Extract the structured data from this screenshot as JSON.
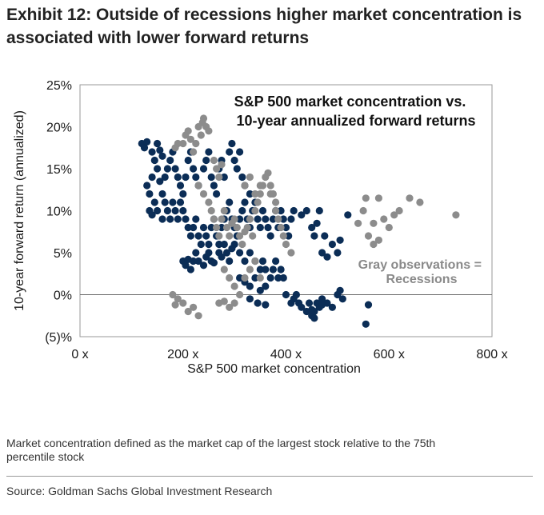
{
  "exhibit_title": "Exhibit 12: Outside of recessions higher market concentration is associated with lower forward returns",
  "footnote": "Market concentration defined as the market cap of the largest stock relative to the 75th percentile stock",
  "source": "Source: Goldman Sachs Global Investment Research",
  "colors": {
    "non_recession": "#0b2d56",
    "recession": "#8c8c8c"
  },
  "chart_data": {
    "type": "scatter",
    "title": "S&P 500 market concentration vs.\n10-year annualized forward returns",
    "title_lines": [
      "S&P 500 market concentration vs.",
      "10-year annualized forward returns"
    ],
    "xlabel": "S&P 500 market concentration",
    "ylabel": "10-year forward return (annualized)",
    "xlim": [
      0,
      800
    ],
    "ylim": [
      -5,
      25
    ],
    "x_ticks": [
      0,
      200,
      400,
      600,
      800
    ],
    "x_tick_labels": [
      "0 x",
      "200 x",
      "400 x",
      "600 x",
      "800 x"
    ],
    "y_ticks": [
      -5,
      0,
      5,
      10,
      15,
      20,
      25
    ],
    "y_tick_labels": [
      "(5)%",
      "0%",
      "5%",
      "10%",
      "15%",
      "20%",
      "25%"
    ],
    "annotation_lines": [
      "Gray observations =",
      "Recessions"
    ],
    "grid": false,
    "legend": "none",
    "series": [
      {
        "points": [
          [
            120,
            18
          ],
          [
            125,
            17.5
          ],
          [
            130,
            18.2
          ],
          [
            140,
            17
          ],
          [
            145,
            16
          ],
          [
            150,
            18
          ],
          [
            155,
            17.2
          ],
          [
            160,
            16.5
          ],
          [
            130,
            13
          ],
          [
            135,
            12
          ],
          [
            140,
            14
          ],
          [
            150,
            15
          ],
          [
            155,
            13.5
          ],
          [
            160,
            12
          ],
          [
            165,
            14
          ],
          [
            170,
            15
          ],
          [
            175,
            16
          ],
          [
            180,
            17
          ],
          [
            185,
            15
          ],
          [
            190,
            14
          ],
          [
            195,
            13
          ],
          [
            200,
            12
          ],
          [
            205,
            14
          ],
          [
            210,
            16
          ],
          [
            215,
            17
          ],
          [
            220,
            15
          ],
          [
            225,
            14
          ],
          [
            230,
            13
          ],
          [
            240,
            15
          ],
          [
            245,
            16
          ],
          [
            250,
            17
          ],
          [
            255,
            14
          ],
          [
            260,
            13
          ],
          [
            265,
            12
          ],
          [
            270,
            15
          ],
          [
            275,
            16
          ],
          [
            280,
            14
          ],
          [
            290,
            17
          ],
          [
            295,
            18
          ],
          [
            300,
            16
          ],
          [
            305,
            15
          ],
          [
            310,
            17
          ],
          [
            315,
            14
          ],
          [
            320,
            13
          ],
          [
            330,
            12
          ],
          [
            135,
            10
          ],
          [
            140,
            9.5
          ],
          [
            145,
            11
          ],
          [
            150,
            10
          ],
          [
            160,
            9
          ],
          [
            165,
            11
          ],
          [
            170,
            10
          ],
          [
            175,
            9
          ],
          [
            180,
            11
          ],
          [
            185,
            10
          ],
          [
            190,
            9
          ],
          [
            195,
            11
          ],
          [
            200,
            10
          ],
          [
            205,
            9
          ],
          [
            210,
            8
          ],
          [
            215,
            7
          ],
          [
            220,
            8
          ],
          [
            225,
            9
          ],
          [
            230,
            7
          ],
          [
            235,
            6
          ],
          [
            240,
            8
          ],
          [
            245,
            7
          ],
          [
            250,
            6
          ],
          [
            255,
            8
          ],
          [
            260,
            9
          ],
          [
            265,
            7
          ],
          [
            270,
            6
          ],
          [
            275,
            8
          ],
          [
            280,
            9
          ],
          [
            285,
            10
          ],
          [
            290,
            11
          ],
          [
            295,
            9
          ],
          [
            300,
            8
          ],
          [
            305,
            7
          ],
          [
            310,
            9
          ],
          [
            315,
            10
          ],
          [
            320,
            11
          ],
          [
            325,
            9
          ],
          [
            330,
            8
          ],
          [
            335,
            10
          ],
          [
            340,
            11
          ],
          [
            345,
            9
          ],
          [
            350,
            8
          ],
          [
            355,
            10
          ],
          [
            360,
            9
          ],
          [
            365,
            8
          ],
          [
            370,
            7
          ],
          [
            375,
            9
          ],
          [
            380,
            10
          ],
          [
            385,
            8
          ],
          [
            390,
            10
          ],
          [
            395,
            9
          ],
          [
            400,
            8
          ],
          [
            405,
            7
          ],
          [
            410,
            9
          ],
          [
            415,
            10
          ],
          [
            200,
            4
          ],
          [
            205,
            3.5
          ],
          [
            210,
            4.2
          ],
          [
            215,
            3
          ],
          [
            220,
            4
          ],
          [
            225,
            5
          ],
          [
            230,
            4
          ],
          [
            240,
            3.5
          ],
          [
            245,
            4.5
          ],
          [
            250,
            5
          ],
          [
            255,
            4
          ],
          [
            260,
            3.8
          ],
          [
            270,
            5
          ],
          [
            275,
            4.5
          ],
          [
            280,
            6
          ],
          [
            285,
            5
          ],
          [
            290,
            4
          ],
          [
            295,
            5.5
          ],
          [
            300,
            6
          ],
          [
            310,
            5
          ],
          [
            320,
            4
          ],
          [
            330,
            5
          ],
          [
            340,
            4
          ],
          [
            350,
            3
          ],
          [
            355,
            4
          ],
          [
            360,
            3
          ],
          [
            370,
            2
          ],
          [
            375,
            3
          ],
          [
            380,
            4
          ],
          [
            385,
            2
          ],
          [
            390,
            3
          ],
          [
            395,
            2
          ],
          [
            310,
            2
          ],
          [
            320,
            1.5
          ],
          [
            330,
            1
          ],
          [
            340,
            2
          ],
          [
            350,
            0.5
          ],
          [
            360,
            1
          ],
          [
            400,
            0
          ],
          [
            410,
            -1
          ],
          [
            415,
            -0.5
          ],
          [
            420,
            0
          ],
          [
            425,
            -1
          ],
          [
            430,
            -1.5
          ],
          [
            440,
            -2
          ],
          [
            445,
            -1
          ],
          [
            450,
            -2.5
          ],
          [
            455,
            -2
          ],
          [
            460,
            -1
          ],
          [
            465,
            -1.5
          ],
          [
            470,
            -0.5
          ],
          [
            480,
            -1
          ],
          [
            490,
            -1.5
          ],
          [
            500,
            0
          ],
          [
            505,
            0.5
          ],
          [
            510,
            -0.5
          ],
          [
            450,
            -1.8
          ],
          [
            455,
            -2.8
          ],
          [
            470,
            -1.2
          ],
          [
            560,
            -1.2
          ],
          [
            555,
            -3.5
          ],
          [
            470,
            5
          ],
          [
            480,
            4.5
          ],
          [
            490,
            6
          ],
          [
            500,
            5
          ],
          [
            475,
            7
          ],
          [
            505,
            6.5
          ],
          [
            430,
            9.5
          ],
          [
            440,
            10
          ],
          [
            450,
            8
          ],
          [
            455,
            7
          ],
          [
            460,
            8.5
          ],
          [
            465,
            10
          ],
          [
            520,
            9.5
          ],
          [
            330,
            -0.5
          ],
          [
            345,
            -1
          ],
          [
            360,
            -1.2
          ]
        ]
      },
      {
        "points": [
          [
            200,
            18
          ],
          [
            205,
            19
          ],
          [
            210,
            19.5
          ],
          [
            215,
            18.5
          ],
          [
            220,
            17
          ],
          [
            225,
            18
          ],
          [
            230,
            20
          ],
          [
            235,
            19
          ],
          [
            238,
            20.5
          ],
          [
            240,
            21
          ],
          [
            245,
            20
          ],
          [
            250,
            19.5
          ],
          [
            190,
            18
          ],
          [
            185,
            17.5
          ],
          [
            260,
            16
          ],
          [
            265,
            15
          ],
          [
            270,
            14
          ],
          [
            275,
            15.5
          ],
          [
            230,
            13
          ],
          [
            240,
            12
          ],
          [
            250,
            11
          ],
          [
            255,
            10
          ],
          [
            260,
            9
          ],
          [
            265,
            8
          ],
          [
            270,
            7
          ],
          [
            275,
            9
          ],
          [
            280,
            10
          ],
          [
            285,
            8
          ],
          [
            290,
            7
          ],
          [
            295,
            8.5
          ],
          [
            300,
            9
          ],
          [
            305,
            8
          ],
          [
            310,
            7
          ],
          [
            315,
            6
          ],
          [
            320,
            7.5
          ],
          [
            325,
            8
          ],
          [
            330,
            9
          ],
          [
            335,
            7
          ],
          [
            340,
            10
          ],
          [
            345,
            11
          ],
          [
            350,
            12
          ],
          [
            355,
            13
          ],
          [
            360,
            14
          ],
          [
            365,
            14.5
          ],
          [
            370,
            13
          ],
          [
            375,
            12
          ],
          [
            380,
            10
          ],
          [
            385,
            9
          ],
          [
            390,
            8
          ],
          [
            395,
            7
          ],
          [
            400,
            6
          ],
          [
            410,
            5
          ],
          [
            280,
            3
          ],
          [
            290,
            2
          ],
          [
            300,
            1
          ],
          [
            310,
            0
          ],
          [
            320,
            2
          ],
          [
            330,
            3
          ],
          [
            340,
            4
          ],
          [
            350,
            2
          ],
          [
            180,
            0
          ],
          [
            190,
            -0.5
          ],
          [
            200,
            -1
          ],
          [
            210,
            -2
          ],
          [
            220,
            -1.5
          ],
          [
            230,
            -2.5
          ],
          [
            270,
            -1
          ],
          [
            290,
            -1.5
          ],
          [
            300,
            -1
          ],
          [
            280,
            -0.8
          ],
          [
            185,
            -1.2
          ],
          [
            540,
            8.5
          ],
          [
            550,
            10
          ],
          [
            555,
            11.5
          ],
          [
            560,
            7
          ],
          [
            570,
            8.5
          ],
          [
            580,
            11.5
          ],
          [
            590,
            9
          ],
          [
            600,
            8
          ],
          [
            610,
            9.5
          ],
          [
            620,
            10
          ],
          [
            640,
            11.5
          ],
          [
            660,
            11
          ],
          [
            570,
            6
          ],
          [
            580,
            6.5
          ],
          [
            730,
            9.5
          ],
          [
            320,
            13
          ],
          [
            330,
            14
          ],
          [
            340,
            12
          ],
          [
            350,
            13
          ],
          [
            370,
            12
          ],
          [
            380,
            11
          ]
        ]
      }
    ]
  }
}
